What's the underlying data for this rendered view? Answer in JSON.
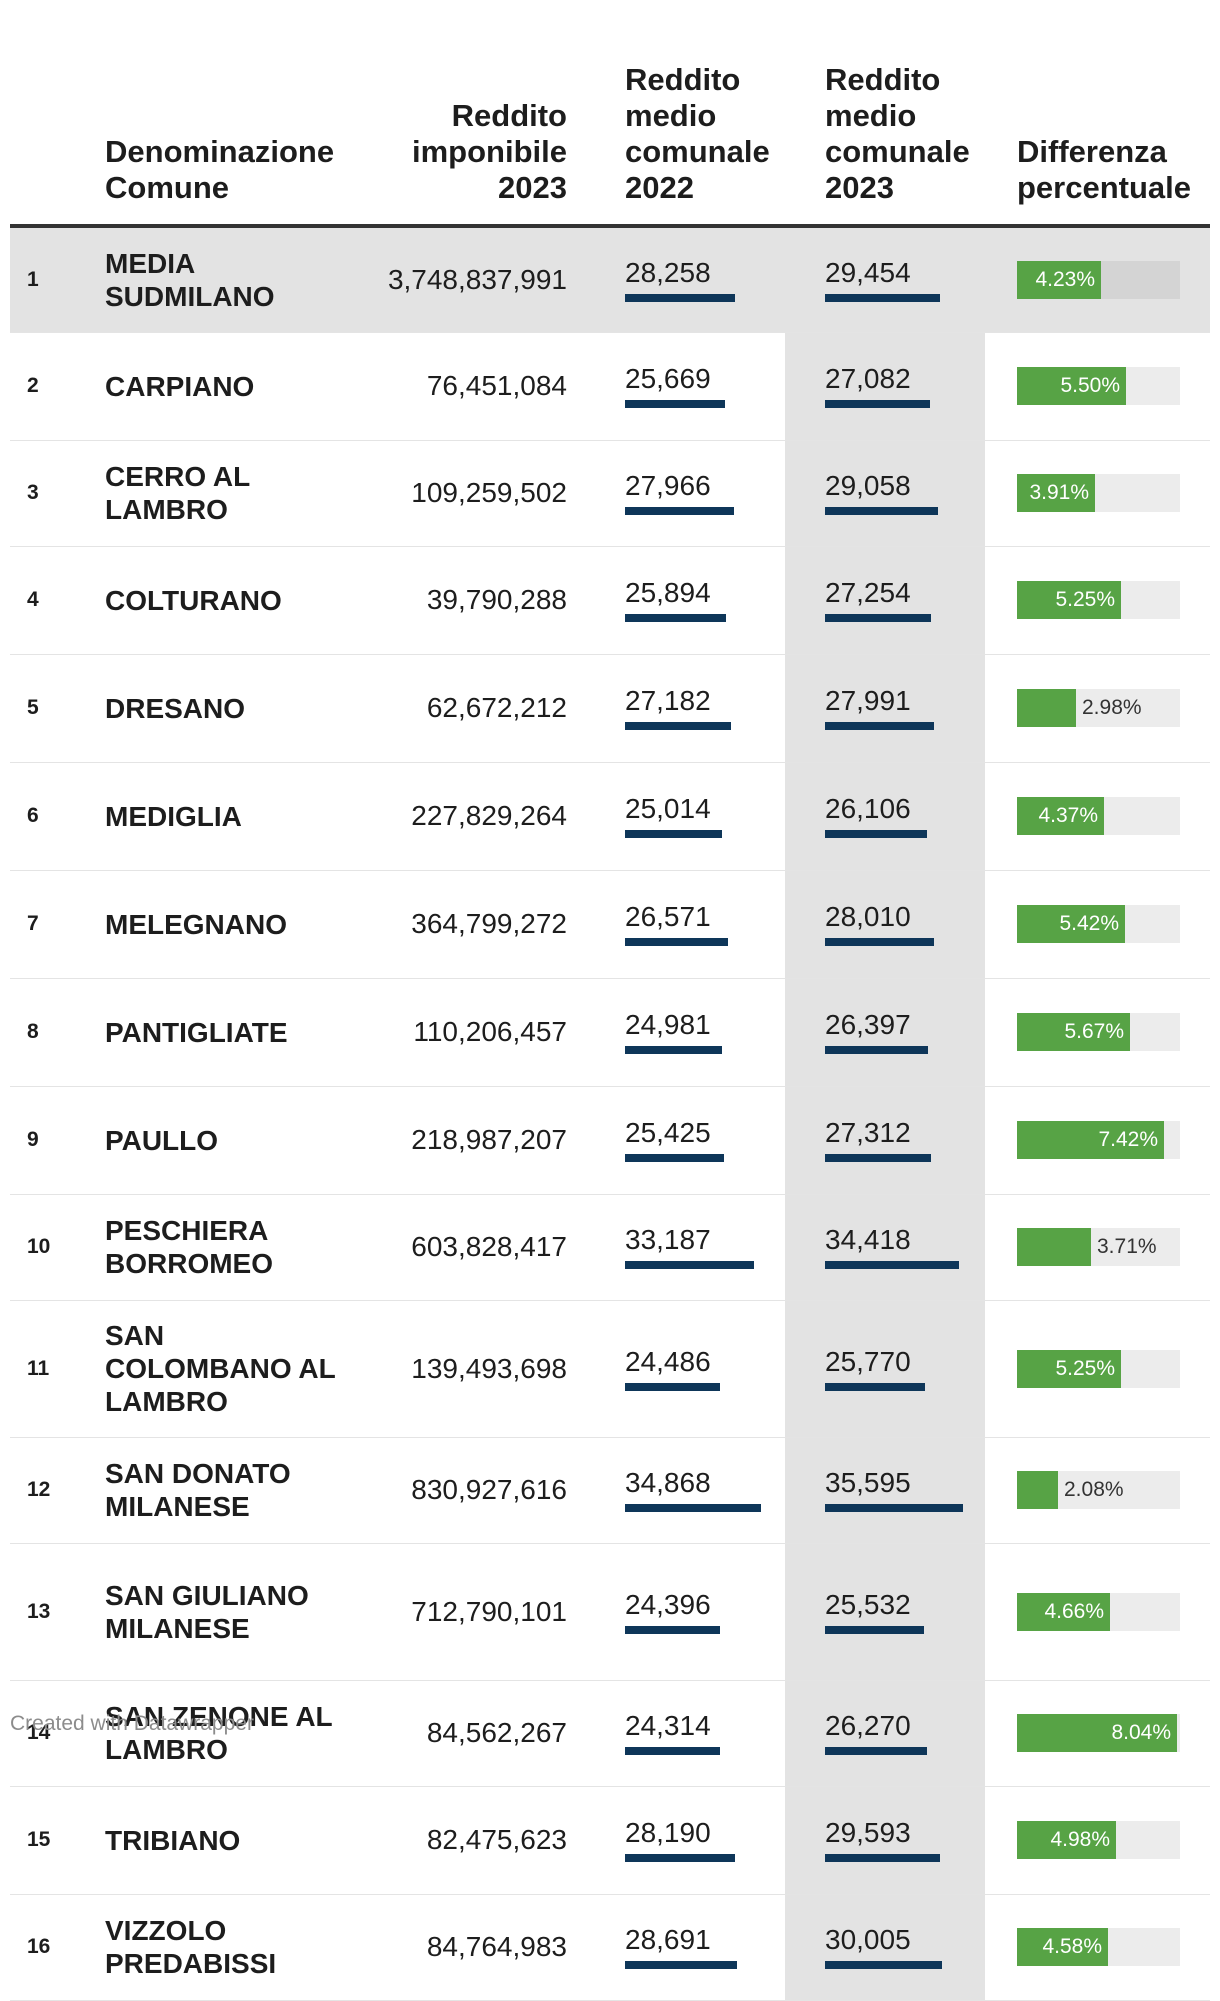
{
  "header": {
    "rank": "",
    "name": "Denominazione\nComune",
    "taxable": "Reddito\nimponibile\n2023",
    "mean2022": "Reddito\nmedio\ncomunale\n2022",
    "mean2023": "Reddito\nmedio\ncomunale\n2023",
    "diff": "Differenza\npercentuale"
  },
  "footer": "Created with Datawrapper",
  "colors": {
    "bar_mean": "#0e3659",
    "bar_diff": "#57a345",
    "bar_track": "#ececec",
    "highlight": "#e3e3e3"
  },
  "scales": {
    "mean_bar_max": 36000,
    "diff_bar_max": 8.2
  },
  "chart_data": {
    "type": "table",
    "columns": [
      "",
      "Denominazione Comune",
      "Reddito imponibile 2023",
      "Reddito medio comunale 2022",
      "Reddito medio comunale 2023",
      "Differenza percentuale"
    ],
    "rows": [
      {
        "rank": "1",
        "name": "MEDIA SUDMILANO",
        "taxable": "3,748,837,991",
        "m22": "28,258",
        "m23": "29,454",
        "diff": "4.23%",
        "m22_value": 28258,
        "m23_value": 29454,
        "diff_value": 4.23,
        "highlight": true
      },
      {
        "rank": "2",
        "name": "CARPIANO",
        "taxable": "76,451,084",
        "m22": "25,669",
        "m23": "27,082",
        "diff": "5.50%",
        "m22_value": 25669,
        "m23_value": 27082,
        "diff_value": 5.5
      },
      {
        "rank": "3",
        "name": "CERRO AL LAMBRO",
        "taxable": "109,259,502",
        "m22": "27,966",
        "m23": "29,058",
        "diff": "3.91%",
        "m22_value": 27966,
        "m23_value": 29058,
        "diff_value": 3.91
      },
      {
        "rank": "4",
        "name": "COLTURANO",
        "taxable": "39,790,288",
        "m22": "25,894",
        "m23": "27,254",
        "diff": "5.25%",
        "m22_value": 25894,
        "m23_value": 27254,
        "diff_value": 5.25
      },
      {
        "rank": "5",
        "name": "DRESANO",
        "taxable": "62,672,212",
        "m22": "27,182",
        "m23": "27,991",
        "diff": "2.98%",
        "m22_value": 27182,
        "m23_value": 27991,
        "diff_value": 2.98
      },
      {
        "rank": "6",
        "name": "MEDIGLIA",
        "taxable": "227,829,264",
        "m22": "25,014",
        "m23": "26,106",
        "diff": "4.37%",
        "m22_value": 25014,
        "m23_value": 26106,
        "diff_value": 4.37
      },
      {
        "rank": "7",
        "name": "MELEGNANO",
        "taxable": "364,799,272",
        "m22": "26,571",
        "m23": "28,010",
        "diff": "5.42%",
        "m22_value": 26571,
        "m23_value": 28010,
        "diff_value": 5.42
      },
      {
        "rank": "8",
        "name": "PANTIGLIATE",
        "taxable": "110,206,457",
        "m22": "24,981",
        "m23": "26,397",
        "diff": "5.67%",
        "m22_value": 24981,
        "m23_value": 26397,
        "diff_value": 5.67
      },
      {
        "rank": "9",
        "name": "PAULLO",
        "taxable": "218,987,207",
        "m22": "25,425",
        "m23": "27,312",
        "diff": "7.42%",
        "m22_value": 25425,
        "m23_value": 27312,
        "diff_value": 7.42
      },
      {
        "rank": "10",
        "name": "PESCHIERA BORROMEO",
        "taxable": "603,828,417",
        "m22": "33,187",
        "m23": "34,418",
        "diff": "3.71%",
        "m22_value": 33187,
        "m23_value": 34418,
        "diff_value": 3.71
      },
      {
        "rank": "11",
        "name": "SAN COLOMBANO AL LAMBRO",
        "taxable": "139,493,698",
        "m22": "24,486",
        "m23": "25,770",
        "diff": "5.25%",
        "m22_value": 24486,
        "m23_value": 25770,
        "diff_value": 5.25
      },
      {
        "rank": "12",
        "name": "SAN DONATO MILANESE",
        "taxable": "830,927,616",
        "m22": "34,868",
        "m23": "35,595",
        "diff": "2.08%",
        "m22_value": 34868,
        "m23_value": 35595,
        "diff_value": 2.08
      },
      {
        "rank": "13",
        "name": "SAN GIULIANO MILANESE",
        "taxable": "712,790,101",
        "m22": "24,396",
        "m23": "25,532",
        "diff": "4.66%",
        "m22_value": 24396,
        "m23_value": 25532,
        "diff_value": 4.66
      },
      {
        "rank": "14",
        "name": "SAN ZENONE AL LAMBRO",
        "taxable": "84,562,267",
        "m22": "24,314",
        "m23": "26,270",
        "diff": "8.04%",
        "m22_value": 24314,
        "m23_value": 26270,
        "diff_value": 8.04
      },
      {
        "rank": "15",
        "name": "TRIBIANO",
        "taxable": "82,475,623",
        "m22": "28,190",
        "m23": "29,593",
        "diff": "4.98%",
        "m22_value": 28190,
        "m23_value": 29593,
        "diff_value": 4.98
      },
      {
        "rank": "16",
        "name": "VIZZOLO PREDABISSI",
        "taxable": "84,764,983",
        "m22": "28,691",
        "m23": "30,005",
        "diff": "4.58%",
        "m22_value": 28691,
        "m23_value": 30005,
        "diff_value": 4.58
      }
    ]
  }
}
